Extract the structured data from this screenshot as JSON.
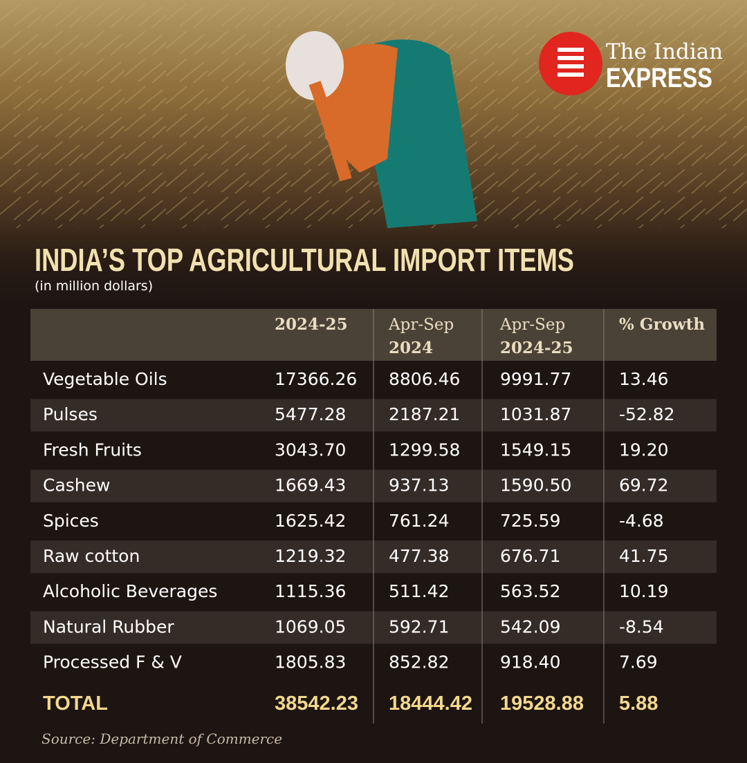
{
  "logo": {
    "line1": "The Indian",
    "line2": "EXPRESS"
  },
  "title": "INDIA’S TOP AGRICULTURAL IMPORT ITEMS",
  "subtitle": "(in million dollars)",
  "table": {
    "columns": [
      [
        "2024-25"
      ],
      [
        "Apr-Sep",
        "2024"
      ],
      [
        "Apr-Sep",
        "2024-25"
      ],
      [
        "% Growth"
      ]
    ],
    "rows": [
      [
        "Vegetable Oils",
        "17366.26",
        "8806.46",
        "9991.77",
        "13.46"
      ],
      [
        "Pulses",
        "5477.28",
        "2187.21",
        "1031.87",
        "-52.82"
      ],
      [
        "Fresh Fruits",
        "3043.70",
        "1299.58",
        "1549.15",
        "19.20"
      ],
      [
        "Cashew",
        "1669.43",
        "937.13",
        "1590.50",
        "69.72"
      ],
      [
        "Spices",
        "1625.42",
        "761.24",
        "725.59",
        "-4.68"
      ],
      [
        "Raw cotton",
        "1219.32",
        "477.38",
        "676.71",
        "41.75"
      ],
      [
        "Alcoholic Beverages",
        "1115.36",
        "511.42",
        "563.52",
        "10.19"
      ],
      [
        "Natural Rubber",
        "1069.05",
        "592.71",
        "542.09",
        "-8.54"
      ],
      [
        "Processed F & V",
        "1805.83",
        "852.82",
        "918.40",
        "7.69"
      ]
    ],
    "total": [
      "TOTAL",
      "38542.23",
      "18444.42",
      "19528.88",
      "5.88"
    ]
  },
  "source": "Source: Department of Commerce"
}
